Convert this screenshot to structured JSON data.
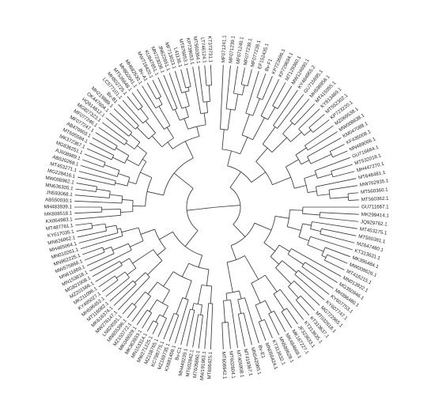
{
  "tree": {
    "line_color": "#3a3a3a",
    "text_color": "#222222",
    "right_clade": [
      "MF071241.1",
      "MF071239.1",
      "MF071240.1",
      "MF077239.1",
      "MF077238.1",
      "EF152435.1",
      "Bv-F1",
      "KP723696.1",
      "KP729694.1",
      "MT129360.1",
      "MW124690.1",
      "KY484955.2",
      "GU715695.1",
      "MH596958.1",
      "MT415955.1",
      "KY813469.1",
      "MT552302.1",
      "KP723220.1",
      "MZ069538.1",
      "MW008638.1",
      "KM047088.1",
      "KF435008.1",
      "MN489066.1",
      "GU716664.1",
      "MT532018.1",
      "MH447270.1",
      "MT646481.1",
      "MW762935.1",
      "MT560360.1",
      "MT560362.1",
      "GU711667.1",
      "MK299414.1",
      "JQ929762.1",
      "MT453275.1",
      "MT560381.1",
      "MZ647480.1",
      "KT313631.1",
      "MK396484.1",
      "MW008626.1",
      "MT416215.1",
      "MN013922.1",
      "MG350946.1",
      "MH396480.1",
      "KY607753.1",
      "KY607747.1",
      "MG722965.1",
      "MT032618.1",
      "KT313637.1",
      "KT313635.1",
      "JF323633.1",
      "MK167227.1",
      "MK484669.1",
      "MN589628.1",
      "KT313632.1",
      "MN056424.1",
      "Bv-E1",
      "MN542060.1",
      "MT419367.1",
      "MT405908.1",
      "MT602804.1",
      "MT606942.1"
    ],
    "left_clade": [
      "KT373731.1",
      "LT746124.1",
      "MT560364.1",
      "KP739653.1",
      "MT076053.1",
      "L41136.1",
      "MF713023.1",
      "JN622651.1",
      "MN723036.1",
      "KU847851.1",
      "MW718420.1",
      "Bv-A1",
      "MH682630.1",
      "MH802041.1",
      "MT526648.1",
      "MH802725.1",
      "LC577101.1",
      "Bv-B1",
      "MH219889.1",
      "OK447604.1",
      "HQ914812.1",
      "MG827323.1",
      "MF077246.1",
      "MF077247.1",
      "AB470903.1",
      "MT605584.1",
      "MK372367.1",
      "MG836251.1",
      "AJ608989.1",
      "AB520268.1",
      "MT453271.1",
      "MG228416.1",
      "MW008962.1",
      "MN636305.1",
      "JN593068.1",
      "AB550030.1",
      "MH483939.1",
      "MK808518.1",
      "KX064983.1",
      "MT487761.1",
      "KY617035.1",
      "MN626062.1",
      "MH465064.1",
      "MN010261.1",
      "MN962225.1",
      "MW575868.1",
      "MN611869.1",
      "MN153818.1",
      "MG821908.1",
      "MZ201566.1",
      "MK211096.1",
      "KY495027.1",
      "MH596452.1",
      "MT116082.1",
      "MK616374.1",
      "MW276147.1",
      "LN824591.1",
      "MN655396.1",
      "MZ150772.1",
      "MK049029.1",
      "MK363933.1",
      "MN153314.1",
      "MW271225.1",
      "MZ158765.1",
      "KC798775.1",
      "MZ169735.1",
      "KX681459.1",
      "Bv-C1",
      "MH449239.1",
      "MT602842.1",
      "MT605860.1",
      "MW191963.1",
      "MT606425.1"
    ]
  }
}
